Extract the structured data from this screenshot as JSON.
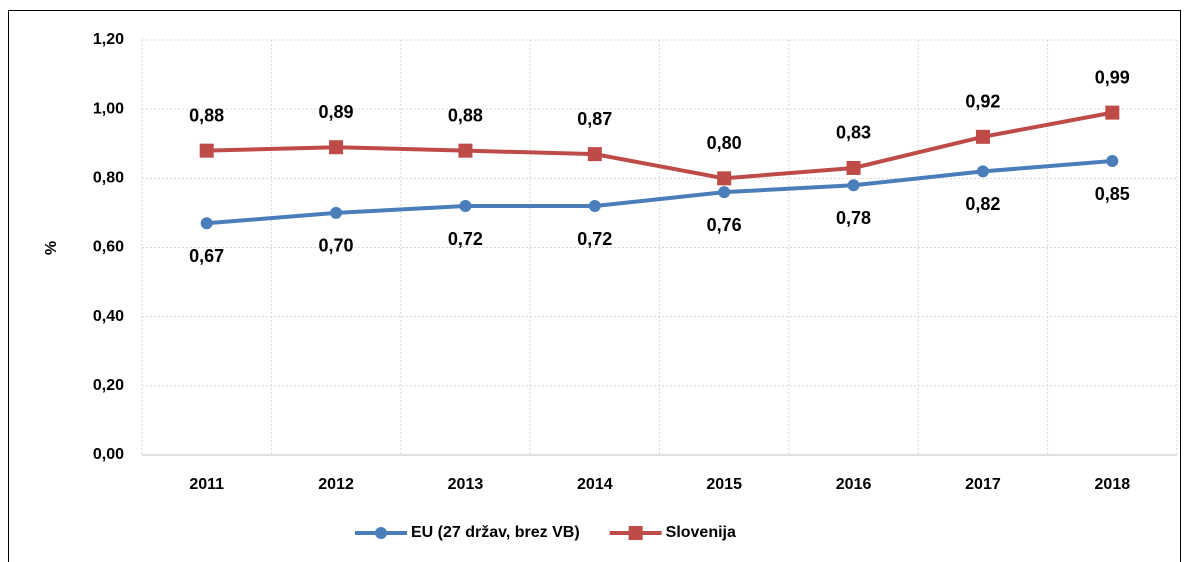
{
  "chart_data": {
    "type": "line",
    "y_label": "%",
    "categories": [
      "2011",
      "2012",
      "2013",
      "2014",
      "2015",
      "2016",
      "2017",
      "2018"
    ],
    "series": [
      {
        "name": "EU (27 držav, brez VB)",
        "color": "#4a7ebb",
        "marker": "circle",
        "values": [
          0.67,
          0.7,
          0.72,
          0.72,
          0.76,
          0.78,
          0.82,
          0.85
        ],
        "value_labels": [
          "0,67",
          "0,70",
          "0,72",
          "0,72",
          "0,76",
          "0,78",
          "0,82",
          "0,85"
        ]
      },
      {
        "name": "Slovenija",
        "color": "#be4b48",
        "marker": "square",
        "values": [
          0.88,
          0.89,
          0.88,
          0.87,
          0.8,
          0.83,
          0.92,
          0.99
        ],
        "value_labels": [
          "0,88",
          "0,89",
          "0,88",
          "0,87",
          "0,80",
          "0,83",
          "0,92",
          "0,99"
        ]
      }
    ],
    "ylim": [
      0,
      1.2
    ],
    "yticks": [
      {
        "value": 0,
        "label": "0,00"
      },
      {
        "value": 0.2,
        "label": "0,20"
      },
      {
        "value": 0.4,
        "label": "0,40"
      },
      {
        "value": 0.6,
        "label": "0,60"
      },
      {
        "value": 0.8,
        "label": "0,80"
      },
      {
        "value": 1.0,
        "label": "1,00"
      },
      {
        "value": 1.2,
        "label": "1,20"
      }
    ],
    "grid": true,
    "legend": "bottom"
  }
}
